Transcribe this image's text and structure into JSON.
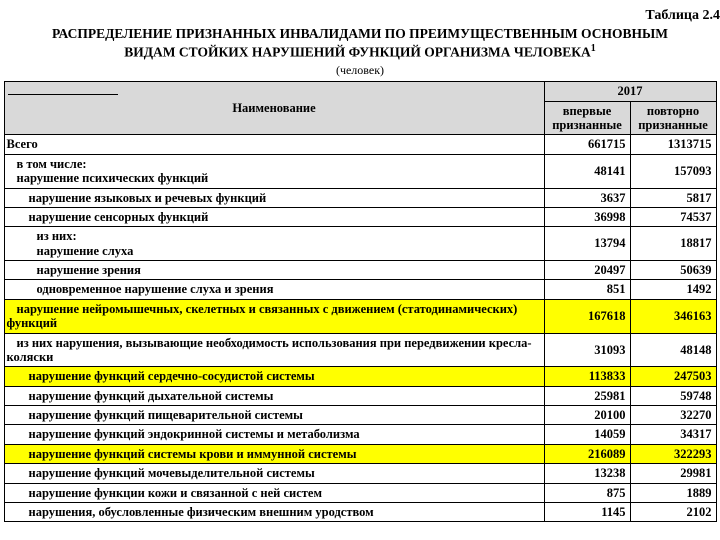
{
  "table_label": "Таблица 2.4",
  "title_line1": "РАСПРЕДЕЛЕНИЕ ПРИЗНАННЫХ ИНВАЛИДАМИ ПО ПРЕИМУЩЕСТВЕННЫМ ОСНОВНЫМ",
  "title_line2_pre": "ВИДАМ СТОЙКИХ НАРУШЕНИЙ ФУНКЦИЙ ОРГАНИЗМА ЧЕЛОВЕКА",
  "title_sup": "1",
  "unit": "(человек)",
  "header": {
    "name": "Наименование",
    "year": "2017",
    "col1": "впервые признанные",
    "col2": "повторно признанные"
  },
  "rows": [
    {
      "name": "Всего",
      "v1": "661715",
      "v2": "1313715",
      "indent": "noind",
      "hl": false
    },
    {
      "name": "в том числе:<br>нарушение психических функций",
      "v1": "48141",
      "v2": "157093",
      "indent": "ind1",
      "hl": false,
      "html": true
    },
    {
      "name": "нарушение языковых и речевых функций",
      "v1": "3637",
      "v2": "5817",
      "indent": "ind2",
      "hl": false
    },
    {
      "name": "нарушение сенсорных функций",
      "v1": "36998",
      "v2": "74537",
      "indent": "ind2",
      "hl": false
    },
    {
      "name": "из них:<br>нарушение слуха",
      "v1": "13794",
      "v2": "18817",
      "indent": "ind3",
      "hl": false,
      "html": true
    },
    {
      "name": "нарушение зрения",
      "v1": "20497",
      "v2": "50639",
      "indent": "ind3",
      "hl": false
    },
    {
      "name": "одновременное нарушение слуха и зрения",
      "v1": "851",
      "v2": "1492",
      "indent": "ind3",
      "hl": false
    },
    {
      "name": "нарушение нейромышечных, скелетных и связанных с движением (статодинамических) функций",
      "v1": "167618",
      "v2": "346163",
      "indent": "ind1",
      "hl": true,
      "wrap": "noind"
    },
    {
      "name": "из них нарушения, вызывающие необходимость использования при передвижении кресла-коляски",
      "v1": "31093",
      "v2": "48148",
      "indent": "ind3",
      "hl": false,
      "wrap": "noind"
    },
    {
      "name": "нарушение функций сердечно-сосудистой системы",
      "v1": "113833",
      "v2": "247503",
      "indent": "ind2",
      "hl": true
    },
    {
      "name": "нарушение функций дыхательной системы",
      "v1": "25981",
      "v2": "59748",
      "indent": "ind2",
      "hl": false
    },
    {
      "name": "нарушение функций пищеварительной системы",
      "v1": "20100",
      "v2": "32270",
      "indent": "ind2",
      "hl": false
    },
    {
      "name": "нарушение функций эндокринной системы и метаболизма",
      "v1": "14059",
      "v2": "34317",
      "indent": "ind2",
      "hl": false
    },
    {
      "name": "нарушение функций системы крови и иммунной системы",
      "v1": "216089",
      "v2": "322293",
      "indent": "ind2",
      "hl": true
    },
    {
      "name": "нарушение функций мочевыделительной системы",
      "v1": "13238",
      "v2": "29981",
      "indent": "ind2",
      "hl": false
    },
    {
      "name": "нарушение функции кожи и связанной с ней систем",
      "v1": "875",
      "v2": "1889",
      "indent": "ind2",
      "hl": false
    },
    {
      "name": "нарушения, обусловленные физическим внешним уродством",
      "v1": "1145",
      "v2": "2102",
      "indent": "ind2",
      "hl": false
    }
  ],
  "style": {
    "highlight_color": "#ffff00",
    "header_bg": "#d9d9d9",
    "border_color": "#000000",
    "font": "Times New Roman"
  }
}
